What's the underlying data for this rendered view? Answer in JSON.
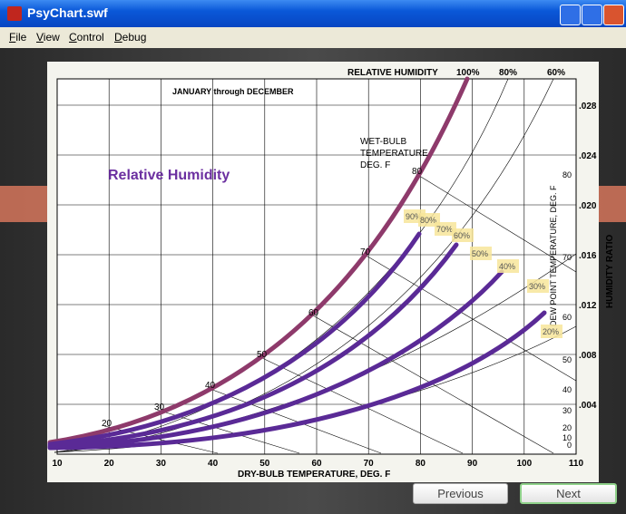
{
  "window": {
    "title": "PsyChart.swf"
  },
  "menu": [
    "File",
    "View",
    "Control",
    "Debug"
  ],
  "chart": {
    "header": "RELATIVE HUMIDITY",
    "header_rh": [
      "100%",
      "80%",
      "60%"
    ],
    "subtitle": "JANUARY through DECEMBER",
    "wet_bulb_label": [
      "WET-BULB",
      "TEMPERATURE",
      "DEG. F"
    ],
    "overlay_title": "Relative Humidity",
    "rh_labels": [
      "90%",
      "80%",
      "70%",
      "60%",
      "50%",
      "40%",
      "30%",
      "20%"
    ],
    "wet_bulb_ticks": [
      20,
      30,
      40,
      50,
      60,
      70,
      80
    ],
    "x_ticks": [
      10,
      20,
      30,
      40,
      50,
      60,
      70,
      80,
      90,
      100,
      110
    ],
    "x_label": "DRY-BULB TEMPERATURE, DEG. F",
    "y_ticks": [
      ".028",
      ".024",
      ".020",
      ".016",
      ".012",
      ".008",
      ".004"
    ],
    "y_label": "HUMIDITY RATIO",
    "dew_point_ticks": [
      80,
      70,
      60,
      50,
      40,
      30,
      20,
      10,
      0
    ],
    "dew_point_label": "DEW POINT TEMPERATURE, DEG. F"
  },
  "buttons": [
    "Previous",
    "Next"
  ]
}
